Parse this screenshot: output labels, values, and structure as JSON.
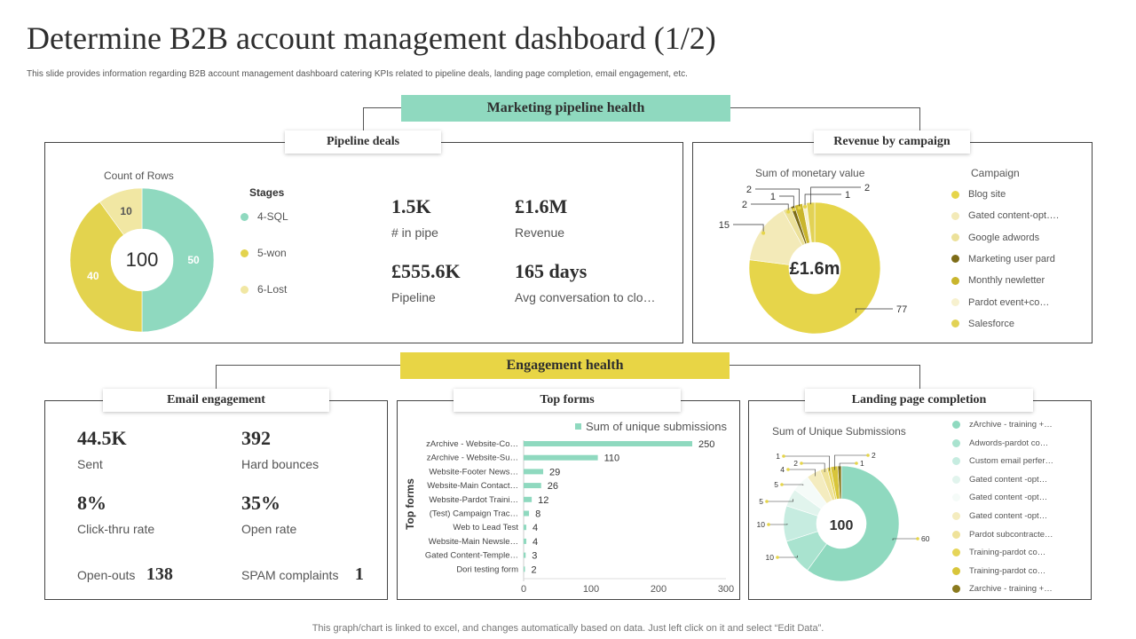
{
  "header": {
    "title": "Determine B2B account management dashboard (1/2)",
    "subtitle": "This slide provides information regarding B2B account management  dashboard catering KPIs related to pipeline deals, landing page completion, email engagement, etc."
  },
  "sections": {
    "marketing": "Marketing pipeline health",
    "engagement": "Engagement health"
  },
  "pipeline": {
    "tab": "Pipeline deals",
    "chart_title": "Count of Rows",
    "center": "100",
    "legend_title": "Stages",
    "kpis": [
      {
        "value": "1.5K",
        "label": "# in pipe"
      },
      {
        "value": "£1.6M",
        "label": "Revenue"
      },
      {
        "value": "£555.6K",
        "label": "Pipeline"
      },
      {
        "value": "165 days",
        "label": "Avg conversation to clo…"
      }
    ]
  },
  "revenue": {
    "tab": "Revenue by campaign",
    "chart_title": "Sum of monetary value",
    "center": "£1.6m",
    "legend_title": "Campaign"
  },
  "email": {
    "tab": "Email engagement",
    "kpis": [
      {
        "value": "44.5K",
        "label": "Sent"
      },
      {
        "value": "392",
        "label": "Hard bounces"
      },
      {
        "value": "8%",
        "label": "Click-thru rate"
      },
      {
        "value": "35%",
        "label": "Open rate"
      }
    ],
    "open_outs_label": "Open-outs",
    "open_outs_value": "138",
    "spam_label": "SPAM complaints",
    "spam_value": "1"
  },
  "forms": {
    "tab": "Top forms",
    "legend": "Sum of unique submissions",
    "axis_title": "Top forms"
  },
  "landing": {
    "tab": "Landing page completion",
    "chart_title": "Sum of Unique Submissions",
    "center": "100"
  },
  "footer": "This graph/chart is linked to excel,  and changes automatically based on data. Just left click on it and select “Edit Data”.",
  "colors": {
    "green": "#8fd9bf",
    "yellow": "#e8d545",
    "yellow_light": "#f3e9a6",
    "olive": "#8a7a1e"
  },
  "chart_data": [
    {
      "id": "pipeline",
      "type": "pie",
      "title": "Count of Rows",
      "categories": [
        "4-SQL",
        "5-won",
        "6-Lost"
      ],
      "values": [
        50,
        40,
        10
      ],
      "colors": [
        "#8fd9bf",
        "#e3d34e",
        "#f1e7a3"
      ],
      "center_label": "100"
    },
    {
      "id": "revenue",
      "type": "pie",
      "title": "Sum of monetary value",
      "categories": [
        "Blog site",
        "Gated content-opt….",
        "Google adwords",
        "Marketing user pard",
        "Monthly newletter",
        "Pardot event+co…",
        "Salesforce"
      ],
      "values": [
        77,
        15,
        2,
        1,
        2,
        1,
        2
      ],
      "colors": [
        "#e6d54a",
        "#f3eab8",
        "#ece19a",
        "#7d6c17",
        "#c9b52c",
        "#f7f1cf",
        "#e2d255"
      ],
      "center_label": "£1.6m"
    },
    {
      "id": "top_forms",
      "type": "bar",
      "orientation": "horizontal",
      "series_name": "Sum of unique submissions",
      "axis_title": "Top forms",
      "categories": [
        "zArchive - Website-Co…",
        "zArchive - Website-Su…",
        "Website-Footer News…",
        "Website-Main Contact…",
        "Website-Pardot Traini…",
        "(Test) Campaign Trac…",
        "Web to Lead Test",
        "Website-Main Newsle…",
        "Gated Content-Temple…",
        "Dori testing form"
      ],
      "values": [
        250,
        110,
        29,
        26,
        12,
        8,
        4,
        4,
        3,
        2
      ],
      "xlim": [
        0,
        300
      ],
      "xticks": [
        0,
        100,
        200,
        300
      ],
      "color": "#8fd9bf"
    },
    {
      "id": "landing",
      "type": "pie",
      "title": "Sum of Unique Submissions",
      "categories": [
        "zArchive - training +…",
        "Adwords-pardot co…",
        "Custom email perfer…",
        "Gated content -opt…",
        "Gated content -opt…",
        "Gated content -opt…",
        "Pardot subcontracte…",
        "Training-pardot  co…",
        "Training-pardot  co…",
        "Zarchive - training +…"
      ],
      "values": [
        60,
        10,
        10,
        5,
        5,
        4,
        2,
        1,
        2,
        1
      ],
      "colors": [
        "#8fd9bf",
        "#a9e3cf",
        "#c6ece0",
        "#e1f4ed",
        "#f5fbf8",
        "#f4ecbf",
        "#efe29a",
        "#e6d559",
        "#d8c53a",
        "#8a7a1e"
      ],
      "center_label": "100"
    }
  ]
}
